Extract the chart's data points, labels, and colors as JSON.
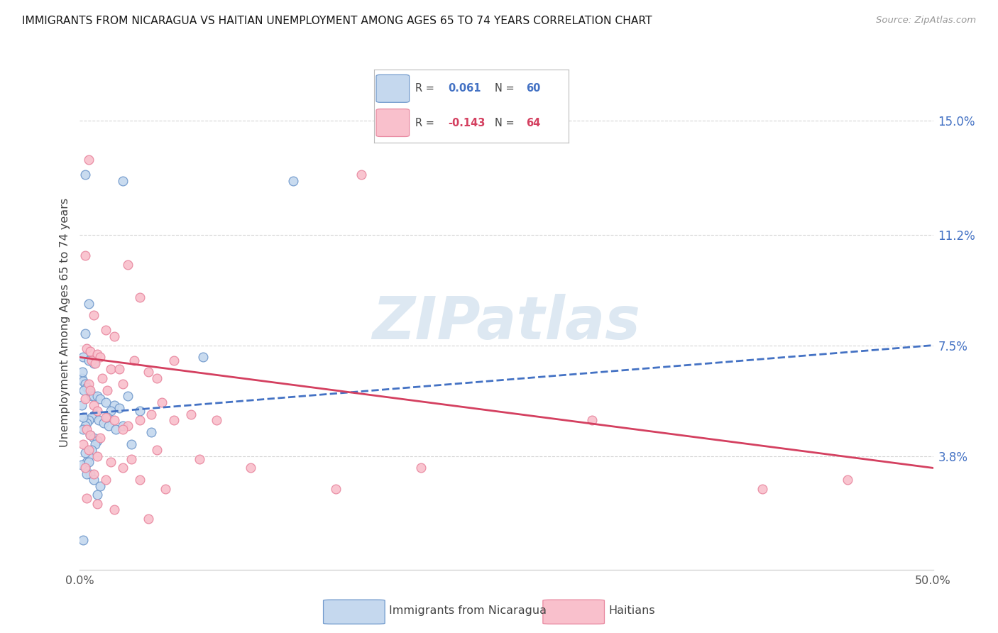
{
  "title": "IMMIGRANTS FROM NICARAGUA VS HAITIAN UNEMPLOYMENT AMONG AGES 65 TO 74 YEARS CORRELATION CHART",
  "source": "Source: ZipAtlas.com",
  "ylabel": "Unemployment Among Ages 65 to 74 years",
  "ylabel_right_ticks": [
    "3.8%",
    "7.5%",
    "11.2%",
    "15.0%"
  ],
  "ylabel_right_vals": [
    3.8,
    7.5,
    11.2,
    15.0
  ],
  "x_tick_positions": [
    0.0,
    10.0,
    20.0,
    30.0,
    40.0,
    50.0
  ],
  "x_tick_labels": [
    "0.0%",
    "",
    "",
    "",
    "",
    "50.0%"
  ],
  "r1_val": "0.061",
  "n1_val": "60",
  "r2_val": "-0.143",
  "n2_val": "64",
  "blue_fill": "#c5d8ee",
  "blue_edge": "#7099cc",
  "pink_fill": "#f9c0cc",
  "pink_edge": "#e888a0",
  "blue_line": "#4472c4",
  "pink_line": "#d44060",
  "watermark_color": "#dde8f2",
  "grid_color": "#d5d5d5",
  "xlim": [
    0,
    50
  ],
  "ylim": [
    0,
    16.5
  ],
  "blue_regression": [
    0,
    5.2,
    50,
    7.5
  ],
  "pink_regression": [
    0,
    7.1,
    50,
    3.4
  ],
  "blue_scatter": [
    [
      0.3,
      13.2
    ],
    [
      2.5,
      13.0
    ],
    [
      12.5,
      13.0
    ],
    [
      0.5,
      8.9
    ],
    [
      0.3,
      7.9
    ],
    [
      0.2,
      7.1
    ],
    [
      0.5,
      7.0
    ],
    [
      0.8,
      6.9
    ],
    [
      0.1,
      6.4
    ],
    [
      0.2,
      6.3
    ],
    [
      0.3,
      6.2
    ],
    [
      0.4,
      6.1
    ],
    [
      0.5,
      6.0
    ],
    [
      0.6,
      5.9
    ],
    [
      0.7,
      5.8
    ],
    [
      0.8,
      5.8
    ],
    [
      1.0,
      5.8
    ],
    [
      1.2,
      5.7
    ],
    [
      1.5,
      5.6
    ],
    [
      2.0,
      5.5
    ],
    [
      2.3,
      5.4
    ],
    [
      1.8,
      5.3
    ],
    [
      0.9,
      5.2
    ],
    [
      0.7,
      5.1
    ],
    [
      0.5,
      5.0
    ],
    [
      0.4,
      4.9
    ],
    [
      0.3,
      4.8
    ],
    [
      0.2,
      4.7
    ],
    [
      1.1,
      5.0
    ],
    [
      1.4,
      4.9
    ],
    [
      1.7,
      4.8
    ],
    [
      2.1,
      4.7
    ],
    [
      0.6,
      4.5
    ],
    [
      0.8,
      4.4
    ],
    [
      1.0,
      4.3
    ],
    [
      0.9,
      4.2
    ],
    [
      0.7,
      4.0
    ],
    [
      0.5,
      3.8
    ],
    [
      0.4,
      3.6
    ],
    [
      0.3,
      3.4
    ],
    [
      0.6,
      3.2
    ],
    [
      0.8,
      3.0
    ],
    [
      1.2,
      2.8
    ],
    [
      2.8,
      5.8
    ],
    [
      3.5,
      5.3
    ],
    [
      4.2,
      4.6
    ],
    [
      0.1,
      5.5
    ],
    [
      0.2,
      5.1
    ],
    [
      0.3,
      3.9
    ],
    [
      0.1,
      3.5
    ],
    [
      0.4,
      3.2
    ],
    [
      1.6,
      5.1
    ],
    [
      2.5,
      4.8
    ],
    [
      3.0,
      4.2
    ],
    [
      0.2,
      1.0
    ],
    [
      7.2,
      7.1
    ],
    [
      0.5,
      3.6
    ],
    [
      1.0,
      2.5
    ],
    [
      0.15,
      6.6
    ],
    [
      0.25,
      6.0
    ]
  ],
  "pink_scatter": [
    [
      0.5,
      13.7
    ],
    [
      16.5,
      13.2
    ],
    [
      0.3,
      10.5
    ],
    [
      2.8,
      10.2
    ],
    [
      3.5,
      9.1
    ],
    [
      0.8,
      8.5
    ],
    [
      1.5,
      8.0
    ],
    [
      2.0,
      7.8
    ],
    [
      0.4,
      7.4
    ],
    [
      0.6,
      7.3
    ],
    [
      1.0,
      7.2
    ],
    [
      1.2,
      7.1
    ],
    [
      0.7,
      7.0
    ],
    [
      0.9,
      6.9
    ],
    [
      1.8,
      6.7
    ],
    [
      2.3,
      6.7
    ],
    [
      1.3,
      6.4
    ],
    [
      0.5,
      6.2
    ],
    [
      2.5,
      6.2
    ],
    [
      0.6,
      6.0
    ],
    [
      1.6,
      6.0
    ],
    [
      3.2,
      7.0
    ],
    [
      4.0,
      6.6
    ],
    [
      4.5,
      6.4
    ],
    [
      5.5,
      7.0
    ],
    [
      0.3,
      5.7
    ],
    [
      0.8,
      5.5
    ],
    [
      1.0,
      5.3
    ],
    [
      1.5,
      5.1
    ],
    [
      2.0,
      5.0
    ],
    [
      2.8,
      4.8
    ],
    [
      3.5,
      5.0
    ],
    [
      4.2,
      5.2
    ],
    [
      0.4,
      4.7
    ],
    [
      0.6,
      4.5
    ],
    [
      1.2,
      4.4
    ],
    [
      2.5,
      4.7
    ],
    [
      4.8,
      5.6
    ],
    [
      5.5,
      5.0
    ],
    [
      6.5,
      5.2
    ],
    [
      0.2,
      4.2
    ],
    [
      0.5,
      4.0
    ],
    [
      1.0,
      3.8
    ],
    [
      1.8,
      3.6
    ],
    [
      3.0,
      3.7
    ],
    [
      4.5,
      4.0
    ],
    [
      8.0,
      5.0
    ],
    [
      0.3,
      3.4
    ],
    [
      0.8,
      3.2
    ],
    [
      1.5,
      3.0
    ],
    [
      2.5,
      3.4
    ],
    [
      3.5,
      3.0
    ],
    [
      5.0,
      2.7
    ],
    [
      7.0,
      3.7
    ],
    [
      10.0,
      3.4
    ],
    [
      15.0,
      2.7
    ],
    [
      0.4,
      2.4
    ],
    [
      1.0,
      2.2
    ],
    [
      2.0,
      2.0
    ],
    [
      4.0,
      1.7
    ],
    [
      20.0,
      3.4
    ],
    [
      30.0,
      5.0
    ],
    [
      40.0,
      2.7
    ],
    [
      45.0,
      3.0
    ]
  ]
}
